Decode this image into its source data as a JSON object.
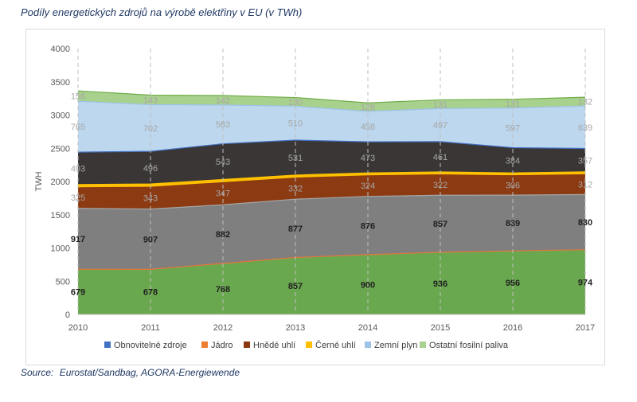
{
  "page": {
    "title": "Podíly energetických zdrojů na výrobě elektřiny v EU (v TWh)",
    "source_label": "Source:",
    "source_text": "Eurostat/Sandbag, AGORA-Energiewende"
  },
  "chart_data": {
    "type": "area",
    "stacked": true,
    "title": "",
    "xlabel": "",
    "ylabel": "TWH",
    "x": [
      "2010",
      "2011",
      "2012",
      "2013",
      "2014",
      "2015",
      "2016",
      "2017"
    ],
    "ylim": [
      0,
      4000
    ],
    "yticks": [
      0,
      500,
      1000,
      1500,
      2000,
      2500,
      3000,
      3500,
      4000
    ],
    "grid": "vertical-dashed",
    "legend_position": "bottom",
    "series": [
      {
        "name": "Obnovitelné zdroje",
        "color": "#6aa84f",
        "label_color": "#1f1f1f",
        "values": [
          679,
          678,
          768,
          857,
          900,
          936,
          956,
          974
        ]
      },
      {
        "name": "Jádro",
        "color": "#7f7f7f",
        "label_color": "#1f1f1f",
        "values": [
          917,
          907,
          882,
          877,
          876,
          857,
          839,
          830
        ]
      },
      {
        "name": "Hnědé uhlí",
        "color": "#8b3a12",
        "label_color": "#a6a6a6",
        "values": [
          325,
          343,
          347,
          332,
          324,
          322,
          306,
          312
        ]
      },
      {
        "name": "Černé uhlí",
        "color": "#ffc000",
        "label_color": "#a6a6a6",
        "values": [
          28,
          30,
          28,
          26,
          24,
          24,
          24,
          24
        ]
      },
      {
        "name": "Zemní plyn",
        "color": "#3a3636",
        "label_color": "#a6a6a6",
        "values": [
          493,
          496,
          543,
          531,
          473,
          461,
          384,
          357
        ]
      },
      {
        "name": "Ostatní fosilní paliva",
        "color": "#bdd7ee",
        "label_color": "#a6a6a6",
        "values": [
          765,
          702,
          583,
          510,
          458,
          497,
          597,
          639
        ]
      },
      {
        "name": "",
        "color": "#a9d18e",
        "label_color": "#a6a6a6",
        "values": [
          156,
          143,
          142,
          130,
          128,
          131,
          131,
          132
        ]
      }
    ],
    "legend_entries": [
      {
        "name": "Obnovitelné zdroje",
        "color": "#4472c4"
      },
      {
        "name": "Jádro",
        "color": "#ed7d31"
      },
      {
        "name": "Hnědé uhlí",
        "color": "#8b3a12"
      },
      {
        "name": "Černé uhlí",
        "color": "#ffc000"
      },
      {
        "name": "Zemní plyn",
        "color": "#9dc3e6"
      },
      {
        "name": "Ostatní fosilní paliva",
        "color": "#a9d18e"
      }
    ],
    "hidden_labels_series": [
      3
    ]
  }
}
